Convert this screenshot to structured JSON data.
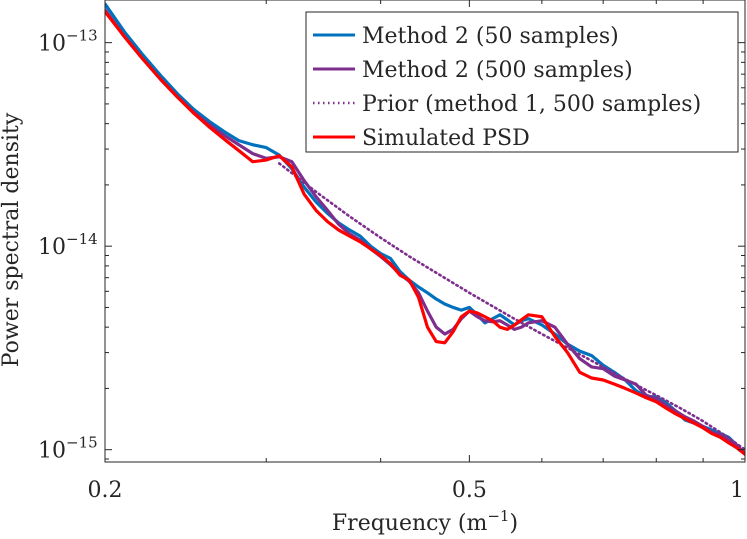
{
  "chart_data": {
    "type": "line",
    "xlabel": "Frequency (m",
    "xlabel_sup": "−1",
    "xlabel_tail": ")",
    "ylabel": "Power spectral density",
    "xscale": "log",
    "yscale": "log",
    "xlim": [
      0.2,
      1.0
    ],
    "ylim": [
      8.7e-16,
      1.62e-13
    ],
    "x_ticks": [
      {
        "value": 0.2,
        "label": "0.2"
      },
      {
        "value": 0.5,
        "label": "0.5"
      },
      {
        "value": 1.0,
        "label": "1"
      }
    ],
    "y_ticks": [
      {
        "value": 1e-15,
        "base": "10",
        "exp": "−15"
      },
      {
        "value": 1e-14,
        "base": "10",
        "exp": "−14"
      },
      {
        "value": 1e-13,
        "base": "10",
        "exp": "−13"
      }
    ],
    "grid": false,
    "legend_position": "top-right",
    "series": [
      {
        "name": "Method 2 (50 samples)",
        "color": "#0072BD",
        "dash": "solid",
        "points": [
          [
            0.2,
            1.55e-13
          ],
          [
            0.21,
            1.13e-13
          ],
          [
            0.22,
            8.7e-14
          ],
          [
            0.23,
            6.9e-14
          ],
          [
            0.24,
            5.6e-14
          ],
          [
            0.25,
            4.7e-14
          ],
          [
            0.26,
            4.1e-14
          ],
          [
            0.27,
            3.65e-14
          ],
          [
            0.28,
            3.3e-14
          ],
          [
            0.29,
            3.15e-14
          ],
          [
            0.3,
            3.05e-14
          ],
          [
            0.31,
            2.8e-14
          ],
          [
            0.32,
            2.4e-14
          ],
          [
            0.33,
            1.95e-14
          ],
          [
            0.34,
            1.65e-14
          ],
          [
            0.35,
            1.45e-14
          ],
          [
            0.36,
            1.3e-14
          ],
          [
            0.37,
            1.2e-14
          ],
          [
            0.38,
            1.12e-14
          ],
          [
            0.39,
            1e-14
          ],
          [
            0.4,
            9.2e-15
          ],
          [
            0.41,
            8.7e-15
          ],
          [
            0.42,
            7.5e-15
          ],
          [
            0.43,
            6.8e-15
          ],
          [
            0.44,
            6.3e-15
          ],
          [
            0.45,
            5.9e-15
          ],
          [
            0.46,
            5.5e-15
          ],
          [
            0.47,
            5.2e-15
          ],
          [
            0.48,
            5e-15
          ],
          [
            0.49,
            4.85e-15
          ],
          [
            0.5,
            5e-15
          ],
          [
            0.51,
            4.6e-15
          ],
          [
            0.52,
            4.2e-15
          ],
          [
            0.53,
            4.4e-15
          ],
          [
            0.54,
            4.6e-15
          ],
          [
            0.55,
            4.35e-15
          ],
          [
            0.56,
            4.1e-15
          ],
          [
            0.57,
            4.3e-15
          ],
          [
            0.58,
            4.4e-15
          ],
          [
            0.6,
            4.1e-15
          ],
          [
            0.62,
            3.7e-15
          ],
          [
            0.64,
            3.3e-15
          ],
          [
            0.66,
            3.05e-15
          ],
          [
            0.68,
            2.9e-15
          ],
          [
            0.7,
            2.6e-15
          ],
          [
            0.72,
            2.4e-15
          ],
          [
            0.74,
            2.2e-15
          ],
          [
            0.76,
            1.95e-15
          ],
          [
            0.78,
            1.82e-15
          ],
          [
            0.8,
            1.82e-15
          ],
          [
            0.82,
            1.7e-15
          ],
          [
            0.84,
            1.55e-15
          ],
          [
            0.86,
            1.4e-15
          ],
          [
            0.88,
            1.35e-15
          ],
          [
            0.9,
            1.3e-15
          ],
          [
            0.92,
            1.25e-15
          ],
          [
            0.94,
            1.2e-15
          ],
          [
            0.96,
            1.15e-15
          ],
          [
            0.98,
            1.05e-15
          ],
          [
            1.0,
            9.5e-16
          ]
        ]
      },
      {
        "name": "Method 2 (500 samples)",
        "color": "#7E2F8E",
        "dash": "solid",
        "points": [
          [
            0.2,
            1.45e-13
          ],
          [
            0.21,
            1.07e-13
          ],
          [
            0.22,
            8.3e-14
          ],
          [
            0.23,
            6.6e-14
          ],
          [
            0.24,
            5.4e-14
          ],
          [
            0.25,
            4.55e-14
          ],
          [
            0.26,
            3.95e-14
          ],
          [
            0.27,
            3.5e-14
          ],
          [
            0.28,
            3.15e-14
          ],
          [
            0.29,
            2.85e-14
          ],
          [
            0.3,
            2.7e-14
          ],
          [
            0.31,
            2.75e-14
          ],
          [
            0.32,
            2.6e-14
          ],
          [
            0.33,
            2.1e-14
          ],
          [
            0.34,
            1.75e-14
          ],
          [
            0.35,
            1.5e-14
          ],
          [
            0.36,
            1.28e-14
          ],
          [
            0.37,
            1.15e-14
          ],
          [
            0.38,
            1.07e-14
          ],
          [
            0.39,
            9.7e-15
          ],
          [
            0.4,
            8.9e-15
          ],
          [
            0.41,
            8.1e-15
          ],
          [
            0.42,
            7.3e-15
          ],
          [
            0.43,
            6.7e-15
          ],
          [
            0.44,
            5.9e-15
          ],
          [
            0.45,
            4.8e-15
          ],
          [
            0.46,
            4e-15
          ],
          [
            0.47,
            3.7e-15
          ],
          [
            0.48,
            3.9e-15
          ],
          [
            0.49,
            4.4e-15
          ],
          [
            0.5,
            4.8e-15
          ],
          [
            0.51,
            4.5e-15
          ],
          [
            0.52,
            4.3e-15
          ],
          [
            0.53,
            4.25e-15
          ],
          [
            0.54,
            4.3e-15
          ],
          [
            0.55,
            4.1e-15
          ],
          [
            0.56,
            3.9e-15
          ],
          [
            0.57,
            4e-15
          ],
          [
            0.58,
            4.2e-15
          ],
          [
            0.6,
            4.3e-15
          ],
          [
            0.62,
            4e-15
          ],
          [
            0.64,
            3.3e-15
          ],
          [
            0.66,
            2.8e-15
          ],
          [
            0.68,
            2.55e-15
          ],
          [
            0.7,
            2.5e-15
          ],
          [
            0.72,
            2.3e-15
          ],
          [
            0.74,
            2.2e-15
          ],
          [
            0.76,
            2.1e-15
          ],
          [
            0.78,
            1.85e-15
          ],
          [
            0.8,
            1.78e-15
          ],
          [
            0.82,
            1.65e-15
          ],
          [
            0.84,
            1.55e-15
          ],
          [
            0.86,
            1.45e-15
          ],
          [
            0.88,
            1.38e-15
          ],
          [
            0.9,
            1.3e-15
          ],
          [
            0.92,
            1.22e-15
          ],
          [
            0.94,
            1.18e-15
          ],
          [
            0.96,
            1.12e-15
          ],
          [
            0.98,
            1.05e-15
          ],
          [
            1.0,
            9.5e-16
          ]
        ]
      },
      {
        "name": "Prior (method 1, 500 samples)",
        "color": "#7E2F8E",
        "dash": "dotted",
        "points": [
          [
            0.31,
            2.55e-14
          ],
          [
            0.34,
            1.85e-14
          ],
          [
            0.37,
            1.4e-14
          ],
          [
            0.4,
            1.1e-14
          ],
          [
            0.43,
            8.9e-15
          ],
          [
            0.46,
            7.4e-15
          ],
          [
            0.5,
            5.9e-15
          ],
          [
            0.55,
            4.6e-15
          ],
          [
            0.6,
            3.7e-15
          ],
          [
            0.65,
            3.05e-15
          ],
          [
            0.7,
            2.55e-15
          ],
          [
            0.75,
            2.15e-15
          ],
          [
            0.8,
            1.85e-15
          ],
          [
            0.85,
            1.6e-15
          ],
          [
            0.9,
            1.38e-15
          ],
          [
            0.95,
            1.18e-15
          ],
          [
            1.0,
            1e-15
          ]
        ]
      },
      {
        "name": "Simulated PSD",
        "color": "#FF0000",
        "dash": "solid",
        "points": [
          [
            0.2,
            1.42e-13
          ],
          [
            0.21,
            1.07e-13
          ],
          [
            0.22,
            8.3e-14
          ],
          [
            0.23,
            6.6e-14
          ],
          [
            0.24,
            5.4e-14
          ],
          [
            0.25,
            4.5e-14
          ],
          [
            0.26,
            3.85e-14
          ],
          [
            0.27,
            3.35e-14
          ],
          [
            0.28,
            2.95e-14
          ],
          [
            0.29,
            2.6e-14
          ],
          [
            0.3,
            2.65e-14
          ],
          [
            0.31,
            2.78e-14
          ],
          [
            0.32,
            2.45e-14
          ],
          [
            0.33,
            1.8e-14
          ],
          [
            0.34,
            1.5e-14
          ],
          [
            0.35,
            1.32e-14
          ],
          [
            0.36,
            1.2e-14
          ],
          [
            0.37,
            1.12e-14
          ],
          [
            0.38,
            1.05e-14
          ],
          [
            0.39,
            9.7e-15
          ],
          [
            0.4,
            9e-15
          ],
          [
            0.41,
            8.2e-15
          ],
          [
            0.42,
            7.2e-15
          ],
          [
            0.43,
            6.8e-15
          ],
          [
            0.44,
            5.6e-15
          ],
          [
            0.45,
            4e-15
          ],
          [
            0.46,
            3.4e-15
          ],
          [
            0.47,
            3.35e-15
          ],
          [
            0.48,
            3.8e-15
          ],
          [
            0.49,
            4.5e-15
          ],
          [
            0.5,
            4.8e-15
          ],
          [
            0.51,
            4.7e-15
          ],
          [
            0.52,
            4.5e-15
          ],
          [
            0.53,
            4.3e-15
          ],
          [
            0.54,
            4e-15
          ],
          [
            0.55,
            3.9e-15
          ],
          [
            0.56,
            4.1e-15
          ],
          [
            0.57,
            4.35e-15
          ],
          [
            0.58,
            4.6e-15
          ],
          [
            0.6,
            4.5e-15
          ],
          [
            0.62,
            3.6e-15
          ],
          [
            0.64,
            3e-15
          ],
          [
            0.66,
            2.4e-15
          ],
          [
            0.68,
            2.25e-15
          ],
          [
            0.7,
            2.2e-15
          ],
          [
            0.72,
            2.1e-15
          ],
          [
            0.74,
            2e-15
          ],
          [
            0.76,
            1.9e-15
          ],
          [
            0.78,
            1.8e-15
          ],
          [
            0.8,
            1.72e-15
          ],
          [
            0.82,
            1.6e-15
          ],
          [
            0.84,
            1.5e-15
          ],
          [
            0.86,
            1.42e-15
          ],
          [
            0.88,
            1.35e-15
          ],
          [
            0.9,
            1.28e-15
          ],
          [
            0.92,
            1.2e-15
          ],
          [
            0.94,
            1.15e-15
          ],
          [
            0.96,
            1.08e-15
          ],
          [
            0.98,
            1.02e-15
          ],
          [
            1.0,
            9.5e-16
          ]
        ]
      }
    ]
  }
}
